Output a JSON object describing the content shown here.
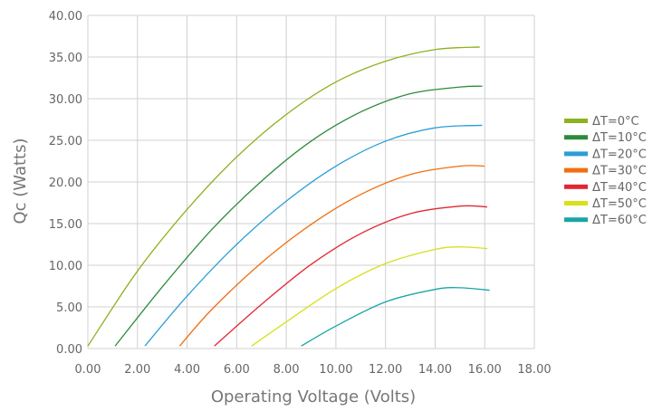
{
  "chart_data": {
    "type": "line",
    "title": "",
    "xlabel": "Operating Voltage (Volts)",
    "ylabel": "Qc (Watts)",
    "xlim": [
      0,
      18
    ],
    "ylim": [
      0,
      40
    ],
    "x_ticks": [
      "0.00",
      "2.00",
      "4.00",
      "6.00",
      "8.00",
      "10.00",
      "12.00",
      "14.00",
      "16.00",
      "18.00"
    ],
    "y_ticks": [
      "0.00",
      "5.00",
      "10.00",
      "15.00",
      "20.00",
      "25.00",
      "30.00",
      "35.00",
      "40.00"
    ],
    "grid": true,
    "legend_position": "right",
    "series": [
      {
        "name": "ΔT=0°C",
        "color": "#8db21f",
        "x": [
          0.0,
          2.0,
          4.0,
          6.0,
          8.0,
          10.0,
          12.0,
          14.0,
          15.8
        ],
        "y": [
          0.3,
          9.3,
          16.7,
          23.0,
          28.1,
          32.0,
          34.5,
          35.9,
          36.2
        ]
      },
      {
        "name": "ΔT=10°C",
        "color": "#2e8b3d",
        "x": [
          1.1,
          3.0,
          5.0,
          7.0,
          9.0,
          11.0,
          13.0,
          15.0,
          15.9
        ],
        "y": [
          0.3,
          7.4,
          14.3,
          20.1,
          24.9,
          28.4,
          30.6,
          31.4,
          31.5
        ]
      },
      {
        "name": "ΔT=20°C",
        "color": "#2a9fd6",
        "x": [
          2.3,
          4.0,
          6.0,
          8.0,
          10.0,
          12.0,
          14.0,
          15.9
        ],
        "y": [
          0.3,
          6.3,
          12.5,
          17.7,
          21.9,
          24.9,
          26.5,
          26.8
        ]
      },
      {
        "name": "ΔT=30°C",
        "color": "#f26e10",
        "x": [
          3.7,
          5.0,
          7.0,
          9.0,
          11.0,
          13.0,
          15.0,
          16.0
        ],
        "y": [
          0.3,
          4.7,
          10.3,
          14.9,
          18.5,
          20.9,
          21.9,
          21.9
        ]
      },
      {
        "name": "ΔT=40°C",
        "color": "#e02731",
        "x": [
          5.1,
          7.0,
          9.0,
          11.0,
          13.0,
          15.0,
          16.1
        ],
        "y": [
          0.3,
          5.3,
          10.1,
          13.8,
          16.2,
          17.1,
          17.0
        ]
      },
      {
        "name": "ΔT=50°C",
        "color": "#d6e11a",
        "x": [
          6.6,
          8.0,
          10.0,
          12.0,
          14.0,
          15.0,
          16.1
        ],
        "y": [
          0.3,
          3.2,
          7.2,
          10.2,
          11.9,
          12.2,
          12.0
        ]
      },
      {
        "name": "ΔT=60°C",
        "color": "#1aa5a5",
        "x": [
          8.6,
          10.0,
          12.0,
          14.0,
          15.0,
          16.2
        ],
        "y": [
          0.3,
          2.7,
          5.6,
          7.1,
          7.3,
          7.0
        ]
      }
    ]
  }
}
